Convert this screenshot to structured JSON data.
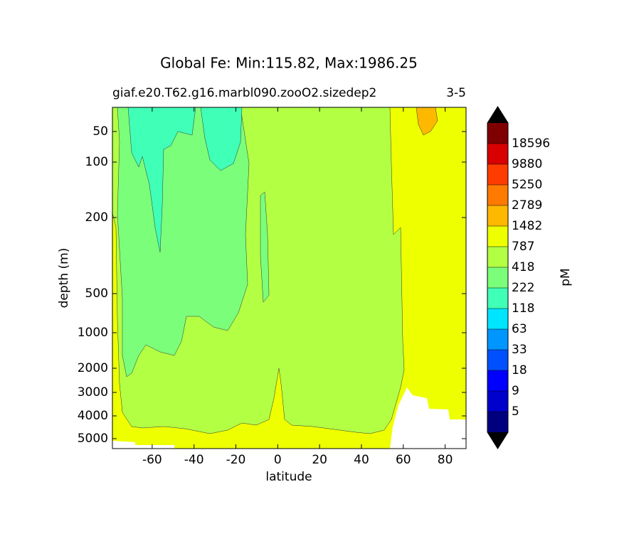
{
  "chart_data": {
    "type": "contour",
    "title": "Global Fe: Min:115.82, Max:1986.25",
    "subtitle": "giaf.e20.T62.g16.marbl090.zooO2.sizedep2",
    "subtitle_right": "3-5",
    "x_label": "latitude",
    "y_label": "depth (m)",
    "xlim": [
      -79,
      90
    ],
    "xticks": [
      -60,
      -40,
      -20,
      0,
      20,
      40,
      60,
      80
    ],
    "ylim": [
      5,
      5500
    ],
    "yticks": [
      50,
      100,
      200,
      500,
      1000,
      2000,
      3000,
      4000,
      5000
    ],
    "y_inverted": true,
    "colorbar_label": "pM",
    "levels": [
      5,
      9,
      18,
      33,
      63,
      118,
      222,
      418,
      787,
      1482,
      2789,
      5250,
      9880,
      18596
    ],
    "colors": [
      "#00007f",
      "#0000cd",
      "#0000ff",
      "#0050ff",
      "#0096ff",
      "#00e5ff",
      "#40ffb7",
      "#7bff7b",
      "#b2ff44",
      "#eeff00",
      "#ffb800",
      "#ff7a00",
      "#ff3c00",
      "#d80000",
      "#7f0000"
    ],
    "extend_color": "#000000"
  }
}
